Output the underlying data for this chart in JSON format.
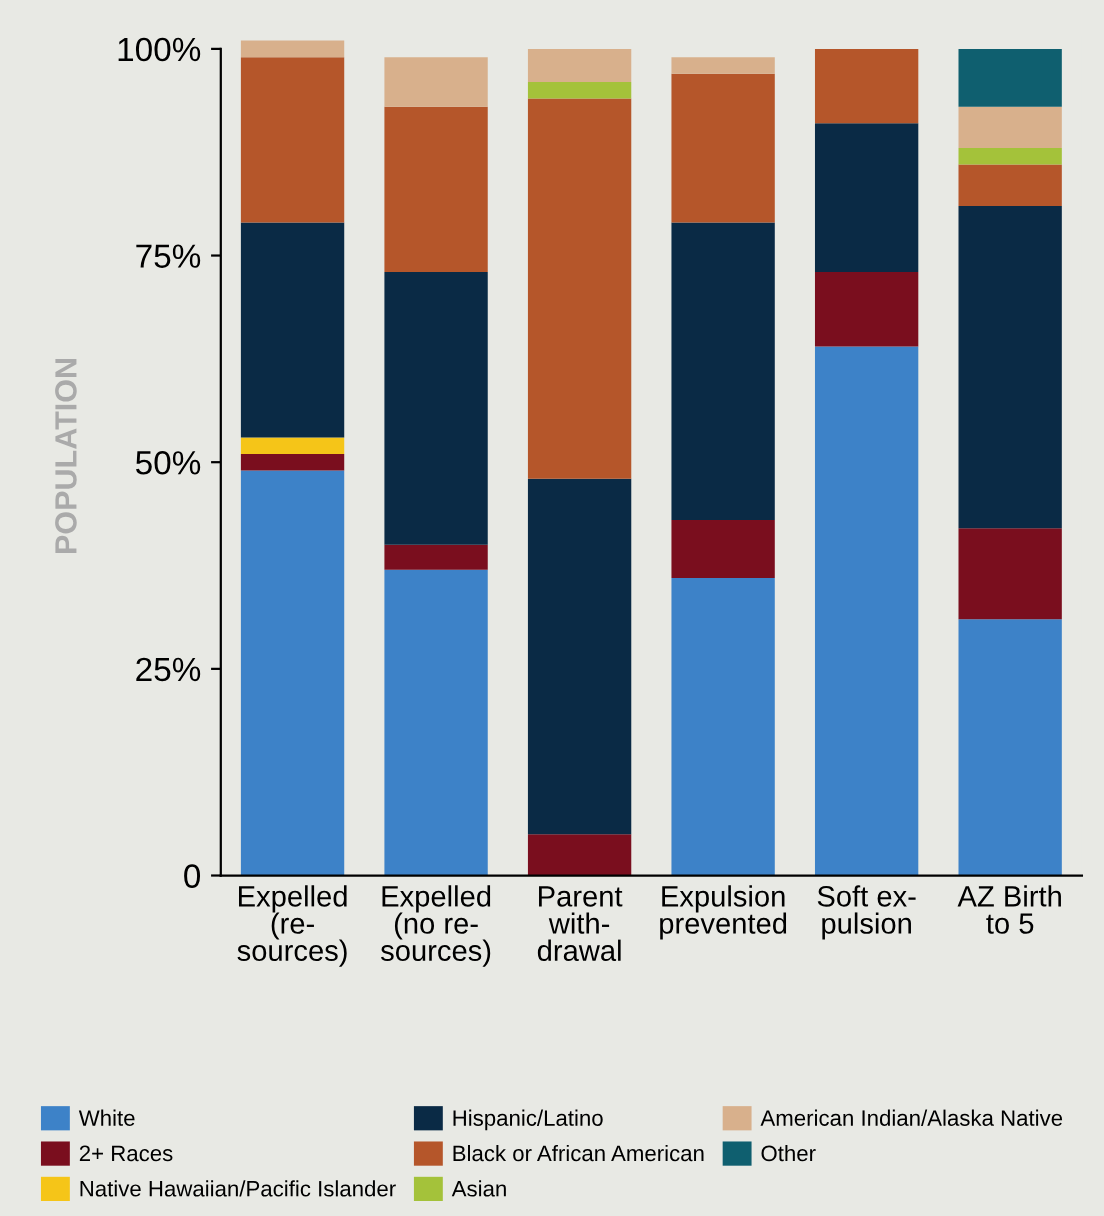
{
  "chart_data": {
    "type": "bar",
    "stacked": true,
    "ylabel": "POPULATION",
    "categories": [
      "Expelled\n(re-\nsources)",
      "Expelled\n(no re-\nsources)",
      "Parent\nwith-\ndrawal",
      "Expulsion\nprevented",
      "Soft ex-\npulsion",
      "AZ Birth\nto 5"
    ],
    "series": [
      {
        "name": "White",
        "color": "#3d82c8",
        "values": [
          49,
          37,
          0,
          36,
          64,
          31
        ]
      },
      {
        "name": "2+ Races",
        "color": "#7a0e1e",
        "values": [
          2,
          3,
          5,
          7,
          9,
          11
        ]
      },
      {
        "name": "Native Hawaiian/Pacific Islander",
        "color": "#f5c518",
        "values": [
          2,
          0,
          0,
          0,
          0,
          0
        ]
      },
      {
        "name": "Hispanic/Latino",
        "color": "#0a2a45",
        "values": [
          26,
          33,
          43,
          36,
          18,
          39
        ]
      },
      {
        "name": "Black or African American",
        "color": "#b5562a",
        "values": [
          20,
          20,
          46,
          18,
          9,
          5
        ]
      },
      {
        "name": "Asian",
        "color": "#a4c23a",
        "values": [
          0,
          0,
          2,
          0,
          0,
          2
        ]
      },
      {
        "name": "American Indian/Alaska Native",
        "color": "#d8b08c",
        "values": [
          2,
          6,
          4,
          2,
          0,
          5
        ]
      },
      {
        "name": "Other",
        "color": "#0f5f6f",
        "values": [
          0,
          0,
          0,
          0,
          0,
          7
        ]
      }
    ],
    "ylim": [
      0,
      101.5
    ],
    "yticks": [
      0,
      {
        "value": 25,
        "label": "25%"
      },
      {
        "value": 50,
        "label": "50%"
      },
      {
        "value": 75,
        "label": "75%"
      },
      {
        "value": 100,
        "label": "100%"
      }
    ],
    "grid": false,
    "legend": "bottom"
  }
}
